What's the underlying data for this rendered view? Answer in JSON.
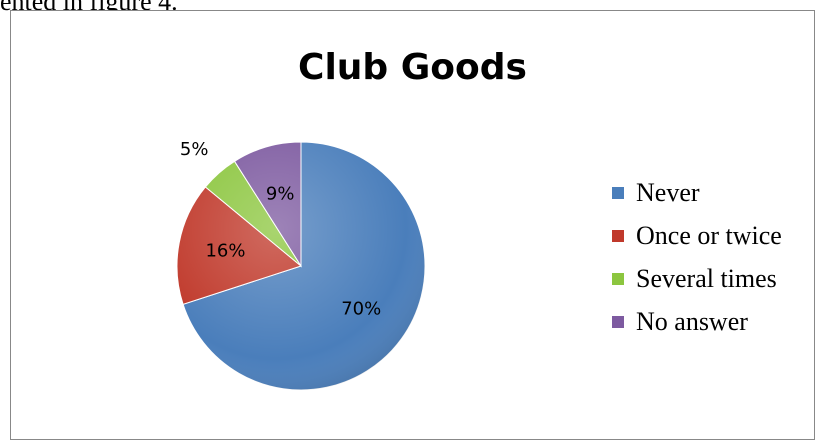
{
  "page": {
    "preceding_text": "ented in figure 4."
  },
  "chart_data": {
    "type": "pie",
    "title": "Club Goods",
    "categories": [
      "Never",
      "Once or twice",
      "Several times",
      "No answer"
    ],
    "values": [
      70,
      16,
      5,
      9
    ],
    "value_labels": [
      "70%",
      "16%",
      "5%",
      "9%"
    ],
    "colors": [
      "#4a7ebb",
      "#c0392b",
      "#8cc63f",
      "#7d5aa0"
    ],
    "legend_position": "right",
    "unit": "%"
  }
}
